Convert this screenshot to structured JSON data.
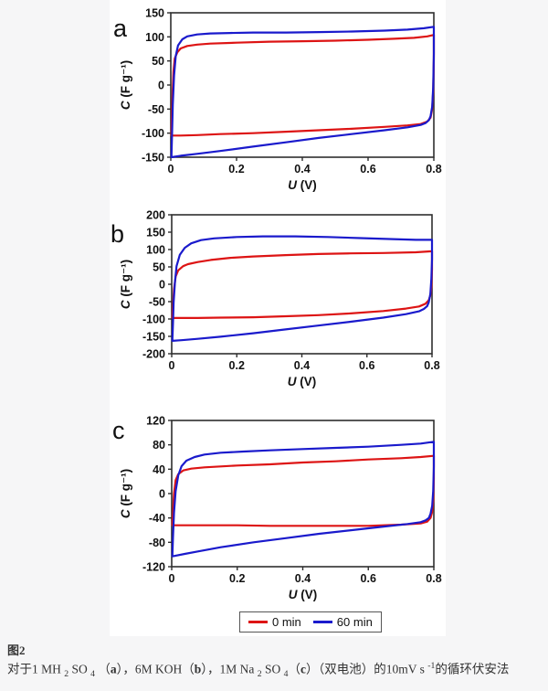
{
  "legend": {
    "items": [
      {
        "label": "0 min",
        "color": "#dd1414"
      },
      {
        "label": "60 min",
        "color": "#1a1acc"
      }
    ]
  },
  "caption": {
    "fig_label": "图2",
    "line": [
      {
        "t": "对于1 MH "
      },
      {
        "t": "2",
        "s": "sub"
      },
      {
        "t": " SO "
      },
      {
        "t": "4",
        "s": "sub"
      },
      {
        "t": " （"
      },
      {
        "t": "a",
        "b": true
      },
      {
        "t": "），6M KOH（"
      },
      {
        "t": "b",
        "b": true
      },
      {
        "t": "），1M Na "
      },
      {
        "t": "2",
        "s": "sub"
      },
      {
        "t": " SO "
      },
      {
        "t": "4",
        "s": "sub"
      },
      {
        "t": "（"
      },
      {
        "t": "c",
        "b": true
      },
      {
        "t": "）（双电池）的10mV s "
      },
      {
        "t": "-1",
        "s": "sup"
      },
      {
        "t": "的循环伏安法"
      }
    ]
  },
  "chart_data": [
    {
      "type": "line",
      "panel": "a",
      "xlabel_var": "U",
      "xlabel_rest": " (V)",
      "ylabel_var": "C",
      "ylabel_rest": " (F g⁻¹)",
      "xlim": [
        0,
        0.8
      ],
      "ylim": [
        -150,
        150
      ],
      "xticks": [
        0,
        0.2,
        0.4,
        0.6,
        0.8
      ],
      "yticks": [
        150,
        100,
        50,
        0,
        -50,
        -100,
        -150
      ],
      "grid": false,
      "series": [
        {
          "name": "0 min",
          "color": "#dd1414",
          "points": [
            [
              0.002,
              -105
            ],
            [
              0.003,
              -72
            ],
            [
              0.005,
              -25
            ],
            [
              0.008,
              28
            ],
            [
              0.012,
              55
            ],
            [
              0.02,
              68
            ],
            [
              0.03,
              76
            ],
            [
              0.05,
              81
            ],
            [
              0.08,
              84
            ],
            [
              0.12,
              86
            ],
            [
              0.2,
              88
            ],
            [
              0.3,
              90
            ],
            [
              0.4,
              91
            ],
            [
              0.5,
              92
            ],
            [
              0.6,
              94
            ],
            [
              0.68,
              96
            ],
            [
              0.74,
              98
            ],
            [
              0.78,
              101
            ],
            [
              0.8,
              104
            ],
            [
              0.8,
              55
            ],
            [
              0.798,
              -12
            ],
            [
              0.795,
              -50
            ],
            [
              0.79,
              -68
            ],
            [
              0.78,
              -76
            ],
            [
              0.76,
              -81
            ],
            [
              0.72,
              -84
            ],
            [
              0.65,
              -87
            ],
            [
              0.55,
              -91
            ],
            [
              0.45,
              -94
            ],
            [
              0.35,
              -97
            ],
            [
              0.25,
              -100
            ],
            [
              0.15,
              -102
            ],
            [
              0.08,
              -104
            ],
            [
              0.03,
              -105
            ],
            [
              0.002,
              -105
            ]
          ]
        },
        {
          "name": "60 min",
          "color": "#1a1acc",
          "points": [
            [
              0.002,
              -150
            ],
            [
              0.004,
              -100
            ],
            [
              0.006,
              -40
            ],
            [
              0.01,
              20
            ],
            [
              0.015,
              60
            ],
            [
              0.022,
              82
            ],
            [
              0.035,
              95
            ],
            [
              0.05,
              101
            ],
            [
              0.08,
              105
            ],
            [
              0.12,
              107
            ],
            [
              0.18,
              108
            ],
            [
              0.25,
              109
            ],
            [
              0.35,
              109
            ],
            [
              0.45,
              110
            ],
            [
              0.55,
              111
            ],
            [
              0.65,
              113
            ],
            [
              0.72,
              115
            ],
            [
              0.77,
              118
            ],
            [
              0.8,
              121
            ],
            [
              0.8,
              65
            ],
            [
              0.798,
              -5
            ],
            [
              0.795,
              -45
            ],
            [
              0.79,
              -65
            ],
            [
              0.785,
              -73
            ],
            [
              0.775,
              -79
            ],
            [
              0.76,
              -83
            ],
            [
              0.72,
              -88
            ],
            [
              0.65,
              -94
            ],
            [
              0.55,
              -102
            ],
            [
              0.45,
              -110
            ],
            [
              0.35,
              -119
            ],
            [
              0.25,
              -128
            ],
            [
              0.15,
              -137
            ],
            [
              0.08,
              -143
            ],
            [
              0.03,
              -147
            ],
            [
              0.002,
              -150
            ]
          ]
        }
      ]
    },
    {
      "type": "line",
      "panel": "b",
      "xlabel_var": "U",
      "xlabel_rest": " (V)",
      "ylabel_var": "C",
      "ylabel_rest": " (F g⁻¹)",
      "xlim": [
        0,
        0.8
      ],
      "ylim": [
        -200,
        200
      ],
      "xticks": [
        0,
        0.2,
        0.4,
        0.6,
        0.8
      ],
      "yticks": [
        200,
        150,
        100,
        50,
        0,
        -50,
        -100,
        -150,
        -200
      ],
      "grid": false,
      "series": [
        {
          "name": "0 min",
          "color": "#dd1414",
          "points": [
            [
              0.002,
              -97
            ],
            [
              0.004,
              -62
            ],
            [
              0.007,
              -15
            ],
            [
              0.012,
              22
            ],
            [
              0.02,
              40
            ],
            [
              0.035,
              52
            ],
            [
              0.05,
              58
            ],
            [
              0.08,
              64
            ],
            [
              0.12,
              70
            ],
            [
              0.18,
              76
            ],
            [
              0.25,
              80
            ],
            [
              0.35,
              84
            ],
            [
              0.45,
              87
            ],
            [
              0.55,
              89
            ],
            [
              0.65,
              90
            ],
            [
              0.75,
              92
            ],
            [
              0.8,
              95
            ],
            [
              0.8,
              42
            ],
            [
              0.798,
              -8
            ],
            [
              0.795,
              -32
            ],
            [
              0.79,
              -46
            ],
            [
              0.78,
              -56
            ],
            [
              0.76,
              -64
            ],
            [
              0.72,
              -70
            ],
            [
              0.65,
              -77
            ],
            [
              0.55,
              -84
            ],
            [
              0.45,
              -89
            ],
            [
              0.35,
              -92
            ],
            [
              0.25,
              -95
            ],
            [
              0.15,
              -96
            ],
            [
              0.08,
              -97
            ],
            [
              0.03,
              -97
            ],
            [
              0.002,
              -97
            ]
          ]
        },
        {
          "name": "60 min",
          "color": "#1a1acc",
          "points": [
            [
              0.002,
              -163
            ],
            [
              0.004,
              -112
            ],
            [
              0.006,
              -52
            ],
            [
              0.01,
              8
            ],
            [
              0.015,
              52
            ],
            [
              0.025,
              85
            ],
            [
              0.04,
              105
            ],
            [
              0.06,
              118
            ],
            [
              0.09,
              127
            ],
            [
              0.13,
              132
            ],
            [
              0.2,
              136
            ],
            [
              0.28,
              138
            ],
            [
              0.38,
              138
            ],
            [
              0.48,
              136
            ],
            [
              0.58,
              133
            ],
            [
              0.68,
              130
            ],
            [
              0.75,
              128
            ],
            [
              0.8,
              128
            ],
            [
              0.8,
              72
            ],
            [
              0.798,
              16
            ],
            [
              0.795,
              -28
            ],
            [
              0.79,
              -52
            ],
            [
              0.785,
              -63
            ],
            [
              0.775,
              -71
            ],
            [
              0.76,
              -78
            ],
            [
              0.72,
              -86
            ],
            [
              0.65,
              -96
            ],
            [
              0.55,
              -108
            ],
            [
              0.45,
              -119
            ],
            [
              0.35,
              -130
            ],
            [
              0.25,
              -141
            ],
            [
              0.15,
              -151
            ],
            [
              0.08,
              -157
            ],
            [
              0.03,
              -161
            ],
            [
              0.002,
              -163
            ]
          ]
        }
      ]
    },
    {
      "type": "line",
      "panel": "c",
      "xlabel_var": "U",
      "xlabel_rest": " (V)",
      "ylabel_var": "C",
      "ylabel_rest": " (F g⁻¹)",
      "xlim": [
        0,
        0.8
      ],
      "ylim": [
        -120,
        120
      ],
      "xticks": [
        0,
        0.2,
        0.4,
        0.6,
        0.8
      ],
      "yticks": [
        120,
        80,
        40,
        0,
        -40,
        -80,
        -120
      ],
      "grid": false,
      "series": [
        {
          "name": "0 min",
          "color": "#dd1414",
          "points": [
            [
              0.002,
              -52
            ],
            [
              0.004,
              -30
            ],
            [
              0.007,
              0
            ],
            [
              0.012,
              22
            ],
            [
              0.02,
              32
            ],
            [
              0.035,
              38
            ],
            [
              0.06,
              41
            ],
            [
              0.1,
              43
            ],
            [
              0.2,
              46
            ],
            [
              0.3,
              48
            ],
            [
              0.4,
              51
            ],
            [
              0.5,
              53
            ],
            [
              0.6,
              56
            ],
            [
              0.7,
              58
            ],
            [
              0.76,
              60
            ],
            [
              0.8,
              62
            ],
            [
              0.8,
              24
            ],
            [
              0.798,
              -12
            ],
            [
              0.795,
              -30
            ],
            [
              0.79,
              -40
            ],
            [
              0.78,
              -46
            ],
            [
              0.76,
              -49
            ],
            [
              0.7,
              -51
            ],
            [
              0.6,
              -53
            ],
            [
              0.45,
              -53
            ],
            [
              0.3,
              -53
            ],
            [
              0.2,
              -52
            ],
            [
              0.1,
              -52
            ],
            [
              0.04,
              -52
            ],
            [
              0.002,
              -52
            ]
          ]
        },
        {
          "name": "60 min",
          "color": "#1a1acc",
          "points": [
            [
              0.002,
              -103
            ],
            [
              0.004,
              -72
            ],
            [
              0.007,
              -32
            ],
            [
              0.012,
              4
            ],
            [
              0.02,
              30
            ],
            [
              0.03,
              45
            ],
            [
              0.045,
              54
            ],
            [
              0.07,
              60
            ],
            [
              0.1,
              64
            ],
            [
              0.15,
              67
            ],
            [
              0.22,
              69
            ],
            [
              0.3,
              71
            ],
            [
              0.4,
              73
            ],
            [
              0.5,
              75
            ],
            [
              0.6,
              77
            ],
            [
              0.7,
              80
            ],
            [
              0.76,
              82
            ],
            [
              0.8,
              85
            ],
            [
              0.8,
              44
            ],
            [
              0.798,
              4
            ],
            [
              0.795,
              -20
            ],
            [
              0.79,
              -33
            ],
            [
              0.785,
              -40
            ],
            [
              0.775,
              -44
            ],
            [
              0.76,
              -47
            ],
            [
              0.72,
              -50
            ],
            [
              0.65,
              -54
            ],
            [
              0.55,
              -60
            ],
            [
              0.45,
              -66
            ],
            [
              0.35,
              -73
            ],
            [
              0.25,
              -80
            ],
            [
              0.15,
              -88
            ],
            [
              0.08,
              -95
            ],
            [
              0.04,
              -99
            ],
            [
              0.002,
              -103
            ]
          ]
        }
      ]
    }
  ]
}
